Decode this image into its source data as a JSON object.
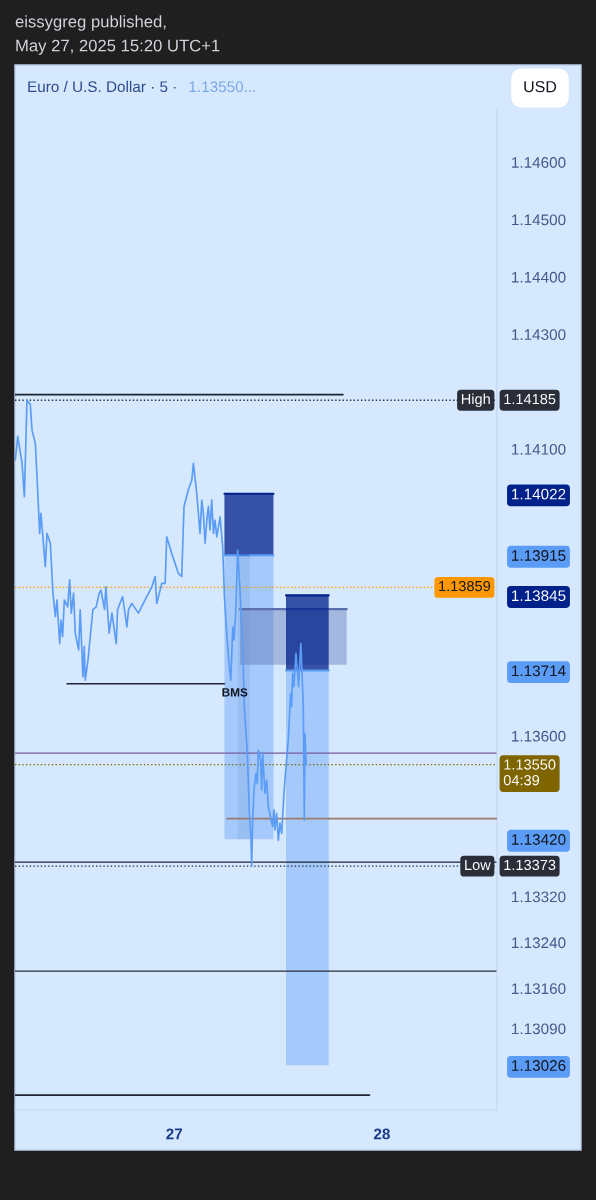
{
  "chart_data": {
    "type": "line",
    "title": "Euro / U.S. Dollar · 5 ·",
    "annotations": [
      "eissygreg published,",
      "May 27, 2025 15:20 UTC+1",
      "1.13550...",
      "USD",
      {
        "text": "BMS",
        "x": "2025-05-27T05:48",
        "y": 1.13691
      }
    ],
    "xlim": [
      "2025-05-26T05:36",
      "2025-05-28T13:18"
    ],
    "xticks": [
      {
        "value": "2025-05-27",
        "label": "27"
      },
      {
        "value": "2025-05-28",
        "label": "28"
      }
    ],
    "ylim": [
      1.12948,
      1.14691
    ],
    "yticks": [
      {
        "value": 1.146,
        "label": "1.14600"
      },
      {
        "value": 1.145,
        "label": "1.14500"
      },
      {
        "value": 1.144,
        "label": "1.14400"
      },
      {
        "value": 1.143,
        "label": "1.14300"
      },
      {
        "value": 1.141,
        "label": "1.14100"
      },
      {
        "value": 1.14022,
        "label": "1.14022"
      },
      {
        "value": 1.13915,
        "label": "1.13915"
      },
      {
        "value": 1.13845,
        "label": "1.13845"
      },
      {
        "value": 1.13714,
        "label": "1.13714"
      },
      {
        "value": 1.136,
        "label": "1.13600"
      },
      {
        "value": 1.1342,
        "label": "1.13420"
      },
      {
        "value": 1.1332,
        "label": "1.13320"
      },
      {
        "value": 1.1324,
        "label": "1.13240"
      },
      {
        "value": 1.1316,
        "label": "1.13160"
      },
      {
        "value": 1.1309,
        "label": "1.13090"
      },
      {
        "value": 1.13026,
        "label": "1.13026"
      }
    ],
    "series": [
      {
        "color": "#00208a",
        "x": [
          "2025-05-27T05:48",
          "2025-05-27T11:28"
        ],
        "values": [
          1.14022,
          1.14022
        ],
        "lower": [
          1.13915,
          1.13915
        ],
        "upper": [
          1.14022,
          1.14022
        ]
      },
      {
        "color": "#5b9cf6",
        "x": [
          "2025-05-27T05:48",
          "2025-05-27T07:21"
        ],
        "values": [
          1.13915,
          1.13915
        ],
        "lower": [
          1.1342,
          1.1342
        ],
        "upper": [
          1.13915,
          1.13915
        ]
      },
      {
        "color": "#3f7fe0",
        "x": [
          "2025-05-27T07:21",
          "2025-05-27T08:46"
        ],
        "values": [
          1.13915,
          1.13915
        ],
        "lower": [
          1.1342,
          1.1342
        ],
        "upper": [
          1.13915,
          1.13915
        ]
      },
      {
        "color": "#5b9cf6",
        "x": [
          "2025-05-27T08:46",
          "2025-05-27T11:28"
        ],
        "values": [
          1.13915,
          1.13915
        ],
        "lower": [
          1.1342,
          1.1342
        ],
        "upper": [
          1.13915,
          1.13915
        ]
      },
      {
        "color": "#5a6fae",
        "x": [
          "2025-05-27T07:37",
          "2025-05-27T19:56"
        ],
        "values": [
          1.13821,
          1.13821
        ],
        "lower": [
          1.13724,
          1.13724
        ],
        "upper": [
          1.13821,
          1.13821
        ]
      },
      {
        "color": "#00208a",
        "x": [
          "2025-05-27T12:55",
          "2025-05-27T17:51"
        ],
        "values": [
          1.13845,
          1.13845
        ],
        "lower": [
          1.13714,
          1.13714
        ],
        "upper": [
          1.13845,
          1.13845
        ]
      },
      {
        "color": "#5b9cf6",
        "x": [
          "2025-05-27T12:55",
          "2025-05-27T17:51"
        ],
        "values": [
          1.13714,
          1.13714
        ],
        "lower": [
          1.13026,
          1.13026
        ],
        "upper": [
          1.13714,
          1.13714
        ]
      },
      {
        "color": "#1e2433",
        "x": [
          "2025-05-26T05:36",
          "2025-05-27T19:30"
        ],
        "values": [
          1.14195,
          1.14195
        ]
      },
      {
        "color": "#1e2433",
        "x": [
          "2025-05-26T11:37",
          "2025-05-27T05:48"
        ],
        "values": [
          1.13691,
          1.13691
        ]
      },
      {
        "color": "#9c7b6b",
        "x": [
          "2025-05-27T06:05",
          "2025-05-28T13:18"
        ],
        "values": [
          1.13456,
          1.13456
        ]
      },
      {
        "color": "#1e2433",
        "x": [
          "2025-05-26T05:36",
          "2025-05-27T22:34"
        ],
        "values": [
          1.12974,
          1.12974
        ]
      },
      {
        "color": "#5b9cf6",
        "x": [
          "2025-05-26T05:38",
          "2025-05-26T05:55",
          "2025-05-26T06:25",
          "2025-05-26T06:41",
          "2025-05-26T06:59",
          "2025-05-26T07:22",
          "2025-05-26T07:34",
          "2025-05-26T07:57",
          "2025-05-26T08:13",
          "2025-05-26T08:27",
          "2025-05-26T08:36",
          "2025-05-26T09:06",
          "2025-05-26T09:18",
          "2025-05-26T09:41",
          "2025-05-26T09:59",
          "2025-05-26T10:16",
          "2025-05-26T10:27",
          "2025-05-26T10:46",
          "2025-05-26T10:55",
          "2025-05-26T11:06",
          "2025-05-26T11:18",
          "2025-05-26T11:41",
          "2025-05-26T11:55",
          "2025-05-26T12:06",
          "2025-05-26T12:22",
          "2025-05-26T12:34",
          "2025-05-26T12:57",
          "2025-05-26T13:08",
          "2025-05-26T13:27",
          "2025-05-26T13:36",
          "2025-05-26T13:43",
          "2025-05-26T14:02",
          "2025-05-26T14:36",
          "2025-05-26T14:59",
          "2025-05-26T15:20",
          "2025-05-26T15:32",
          "2025-05-26T15:57",
          "2025-05-26T16:06",
          "2025-05-26T16:29",
          "2025-05-26T16:48",
          "2025-05-26T17:18",
          "2025-05-26T17:27",
          "2025-05-26T18:02",
          "2025-05-26T18:32",
          "2025-05-26T18:43",
          "2025-05-26T19:06",
          "2025-05-26T19:52",
          "2025-05-26T20:38",
          "2025-05-26T21:25",
          "2025-05-26T21:48",
          "2025-05-26T21:59",
          "2025-05-26T22:34",
          "2025-05-26T22:57",
          "2025-05-26T23:08",
          "2025-05-26T23:43",
          "2025-05-27T00:29",
          "2025-05-27T00:52",
          "2025-05-27T01:08",
          "2025-05-27T01:38",
          "2025-05-27T02:02",
          "2025-05-27T02:13",
          "2025-05-27T02:36",
          "2025-05-27T02:59",
          "2025-05-27T03:11",
          "2025-05-27T03:22",
          "2025-05-27T03:34",
          "2025-05-27T03:46",
          "2025-05-27T03:57",
          "2025-05-27T04:08",
          "2025-05-27T04:20",
          "2025-05-27T04:32",
          "2025-05-27T04:43",
          "2025-05-27T04:55",
          "2025-05-27T05:18",
          "2025-05-27T05:36",
          "2025-05-27T05:48",
          "2025-05-27T06:04",
          "2025-05-27T06:22",
          "2025-05-27T06:32",
          "2025-05-27T06:46",
          "2025-05-27T06:55",
          "2025-05-27T07:06",
          "2025-05-27T07:20",
          "2025-05-27T07:36",
          "2025-05-27T07:55",
          "2025-05-27T08:06",
          "2025-05-27T08:27",
          "2025-05-27T08:41",
          "2025-05-27T08:52",
          "2025-05-27T08:57",
          "2025-05-27T09:04",
          "2025-05-27T09:13",
          "2025-05-27T09:27",
          "2025-05-27T09:36",
          "2025-05-27T09:43",
          "2025-05-27T09:59",
          "2025-05-27T10:06",
          "2025-05-27T10:13",
          "2025-05-27T10:29",
          "2025-05-27T10:41",
          "2025-05-27T10:52",
          "2025-05-27T11:22",
          "2025-05-27T11:32",
          "2025-05-27T11:38",
          "2025-05-27T11:50",
          "2025-05-27T12:02",
          "2025-05-27T12:13",
          "2025-05-27T12:25",
          "2025-05-27T12:41",
          "2025-05-27T12:55",
          "2025-05-27T13:11",
          "2025-05-27T13:27",
          "2025-05-27T13:34",
          "2025-05-27T13:41",
          "2025-05-27T13:50",
          "2025-05-27T14:04",
          "2025-05-27T14:22",
          "2025-05-27T14:38",
          "2025-05-27T14:55",
          "2025-05-27T15:02",
          "2025-05-27T15:06",
          "2025-05-27T15:15"
        ],
        "values": [
          1.14081,
          1.14122,
          1.14075,
          1.14017,
          1.14185,
          1.14178,
          1.14133,
          1.1411,
          1.14029,
          1.13953,
          1.13988,
          1.13895,
          1.13953,
          1.13936,
          1.13849,
          1.13808,
          1.13837,
          1.13761,
          1.13802,
          1.13773,
          1.13837,
          1.13825,
          1.13872,
          1.13814,
          1.13849,
          1.13779,
          1.1375,
          1.1382,
          1.13703,
          1.13756,
          1.13697,
          1.13732,
          1.1382,
          1.13825,
          1.13849,
          1.13854,
          1.1382,
          1.1386,
          1.13779,
          1.13814,
          1.13761,
          1.1382,
          1.13843,
          1.1379,
          1.1382,
          1.13831,
          1.13814,
          1.13837,
          1.1386,
          1.13878,
          1.13831,
          1.13866,
          1.13866,
          1.13947,
          1.13918,
          1.13883,
          1.13878,
          1.14,
          1.14029,
          1.14046,
          1.14075,
          1.14023,
          1.13953,
          1.14011,
          1.13988,
          1.13936,
          1.13976,
          1.14,
          1.13959,
          1.14011,
          1.13953,
          1.13976,
          1.13947,
          1.13982,
          1.1393,
          1.13843,
          1.13779,
          1.13721,
          1.13697,
          1.1379,
          1.13767,
          1.13814,
          1.13924,
          1.13854,
          1.13756,
          1.13651,
          1.1357,
          1.13465,
          1.13424,
          1.13373,
          1.13453,
          1.13506,
          1.13535,
          1.13517,
          1.13575,
          1.13558,
          1.13506,
          1.1357,
          1.135,
          1.13523,
          1.13477,
          1.13442,
          1.13471,
          1.13436,
          1.13465,
          1.13418,
          1.13448,
          1.1343,
          1.135,
          1.13546,
          1.13593,
          1.13674,
          1.13651,
          1.13709,
          1.13686,
          1.13744,
          1.13686,
          1.13761,
          1.13651,
          1.13453,
          1.13604,
          1.1355
        ]
      }
    ],
    "ref_lines": [
      {
        "axis": "y",
        "value": 1.14185,
        "label": "High 1.14185",
        "color": "#2a2e39",
        "line_style": "dotted"
      },
      {
        "axis": "y",
        "value": 1.13859,
        "label": "1.13859",
        "color": "#ff9800",
        "line_style": "dotted"
      },
      {
        "axis": "y",
        "value": 1.1357,
        "color": "#7a5a9a",
        "line_style": "solid"
      },
      {
        "axis": "y",
        "value": 1.1355,
        "label": "1.13550\n04:39",
        "color": "#7f6500",
        "line_style": "dotted"
      },
      {
        "axis": "y",
        "value": 1.1338,
        "color": "#1e2433",
        "line_style": "solid"
      },
      {
        "axis": "y",
        "value": 1.13373,
        "label": "Low 1.13373",
        "color": "#2a2e39",
        "line_style": "dotted"
      },
      {
        "axis": "y",
        "value": 1.1319,
        "color": "#2a2e39",
        "line_style": "solid"
      }
    ]
  }
}
